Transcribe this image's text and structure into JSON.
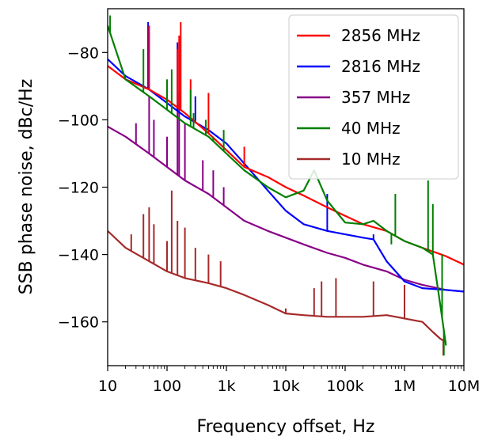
{
  "chart_data": {
    "type": "line",
    "title": "",
    "xlabel": "Frequency offset, Hz",
    "ylabel": "SSB phase noise, dBc/Hz",
    "xscale": "log",
    "xlim": [
      10,
      10000000
    ],
    "ylim": [
      -173,
      -67
    ],
    "x_ticks": [
      10,
      100,
      1000,
      10000,
      100000,
      1000000,
      10000000
    ],
    "x_tick_labels": [
      "10",
      "100",
      "1k",
      "10k",
      "100k",
      "1M",
      "10M"
    ],
    "y_ticks": [
      -80,
      -100,
      -120,
      -140,
      -160
    ],
    "y_tick_labels": [
      "−80",
      "−100",
      "−120",
      "−140",
      "−160"
    ],
    "grid": false,
    "legend_position": "upper right",
    "series": [
      {
        "name": "2856 MHz",
        "color": "#ff0000",
        "x": [
          10,
          20,
          50,
          100,
          200,
          500,
          1000,
          2000,
          5000,
          10000,
          20000,
          50000,
          100000,
          200000,
          500000,
          1000000,
          2000000,
          5000000,
          10000000
        ],
        "y": [
          -84,
          -88,
          -91,
          -94,
          -98,
          -104,
          -109,
          -114,
          -117,
          -120,
          -122.5,
          -126,
          -128.5,
          -131,
          -133,
          -136,
          -138,
          -140.5,
          -143
        ],
        "spikes": [
          {
            "x": 50,
            "y": -72
          },
          {
            "x": 150,
            "y": -79
          },
          {
            "x": 160,
            "y": -75
          },
          {
            "x": 170,
            "y": -71
          },
          {
            "x": 250,
            "y": -88
          },
          {
            "x": 500,
            "y": -92
          },
          {
            "x": 2000,
            "y": -108
          }
        ]
      },
      {
        "name": "2816 MHz",
        "color": "#0000ff",
        "x": [
          10,
          20,
          50,
          100,
          200,
          500,
          1000,
          2000,
          5000,
          10000,
          20000,
          50000,
          100000,
          200000,
          300000,
          500000,
          1000000,
          2000000,
          5000000,
          10000000
        ],
        "y": [
          -82,
          -87,
          -91,
          -95,
          -99,
          -103,
          -107,
          -113,
          -121,
          -127,
          -131,
          -133,
          -134,
          -135,
          -135.5,
          -142,
          -148,
          -150,
          -150.5,
          -151
        ],
        "spikes": [
          {
            "x": 48,
            "y": -71
          },
          {
            "x": 50,
            "y": -74
          },
          {
            "x": 150,
            "y": -77
          },
          {
            "x": 300,
            "y": -93
          },
          {
            "x": 50000,
            "y": -122
          },
          {
            "x": 300000,
            "y": -134
          }
        ]
      },
      {
        "name": "357 MHz",
        "color": "#880088",
        "x": [
          10,
          20,
          50,
          100,
          200,
          500,
          1000,
          2000,
          5000,
          10000,
          20000,
          50000,
          100000,
          200000,
          500000,
          1000000,
          2000000,
          5000000,
          10000000
        ],
        "y": [
          -102,
          -105,
          -110,
          -114,
          -118,
          -122,
          -126,
          -130,
          -133,
          -135,
          -137,
          -139.5,
          -141,
          -143,
          -145,
          -147.5,
          -149,
          -150.5,
          -151
        ],
        "spikes": [
          {
            "x": 30,
            "y": -101
          },
          {
            "x": 50,
            "y": -93
          },
          {
            "x": 60,
            "y": -100
          },
          {
            "x": 100,
            "y": -105
          },
          {
            "x": 150,
            "y": -95
          },
          {
            "x": 160,
            "y": -92
          },
          {
            "x": 200,
            "y": -101
          },
          {
            "x": 400,
            "y": -112
          },
          {
            "x": 600,
            "y": -115
          },
          {
            "x": 900,
            "y": -120
          }
        ]
      },
      {
        "name": "40 MHz",
        "color": "#008000",
        "x": [
          10,
          20,
          50,
          100,
          200,
          500,
          1000,
          2000,
          5000,
          10000,
          20000,
          30000,
          50000,
          100000,
          200000,
          300000,
          500000,
          1000000,
          2000000,
          3000000,
          4000000,
          5000000
        ],
        "y": [
          -72,
          -88,
          -93,
          -97,
          -101,
          -105,
          -110,
          -115,
          -120,
          -123,
          -121,
          -115,
          -124,
          -130.5,
          -131,
          -130,
          -133,
          -136,
          -138,
          -140,
          -155,
          -167
        ],
        "spikes": [
          {
            "x": 11,
            "y": -69
          },
          {
            "x": 40,
            "y": -79
          },
          {
            "x": 100,
            "y": -88
          },
          {
            "x": 120,
            "y": -85
          },
          {
            "x": 250,
            "y": -91
          },
          {
            "x": 280,
            "y": -98
          },
          {
            "x": 450,
            "y": -100
          },
          {
            "x": 600,
            "y": -105
          },
          {
            "x": 900,
            "y": -103
          },
          {
            "x": 600000,
            "y": -137
          },
          {
            "x": 700000,
            "y": -122
          },
          {
            "x": 2500000,
            "y": -118
          },
          {
            "x": 3000000,
            "y": -125
          },
          {
            "x": 4300000,
            "y": -140
          },
          {
            "x": 4600000,
            "y": -170
          }
        ]
      },
      {
        "name": "10 MHz",
        "color": "#a52a2a",
        "x": [
          10,
          20,
          50,
          100,
          200,
          500,
          1000,
          2000,
          5000,
          10000,
          20000,
          50000,
          100000,
          200000,
          500000,
          1000000,
          2000000,
          3000000,
          4000000,
          5000000
        ],
        "y": [
          -133,
          -138,
          -142,
          -145,
          -147,
          -148.5,
          -150,
          -152,
          -155,
          -157.5,
          -158,
          -158.5,
          -158.5,
          -158.5,
          -158,
          -159,
          -160,
          -163,
          -165,
          -166
        ],
        "spikes": [
          {
            "x": 25,
            "y": -134
          },
          {
            "x": 40,
            "y": -128
          },
          {
            "x": 50,
            "y": -126
          },
          {
            "x": 60,
            "y": -131
          },
          {
            "x": 100,
            "y": -136
          },
          {
            "x": 120,
            "y": -121
          },
          {
            "x": 150,
            "y": -130
          },
          {
            "x": 200,
            "y": -132
          },
          {
            "x": 300,
            "y": -138
          },
          {
            "x": 500,
            "y": -140
          },
          {
            "x": 800,
            "y": -142
          },
          {
            "x": 10000,
            "y": -156
          },
          {
            "x": 30000,
            "y": -150
          },
          {
            "x": 40000,
            "y": -148
          },
          {
            "x": 70000,
            "y": -147
          },
          {
            "x": 300000,
            "y": -148
          },
          {
            "x": 1000000,
            "y": -149
          },
          {
            "x": 4500000,
            "y": -170
          }
        ]
      }
    ]
  }
}
